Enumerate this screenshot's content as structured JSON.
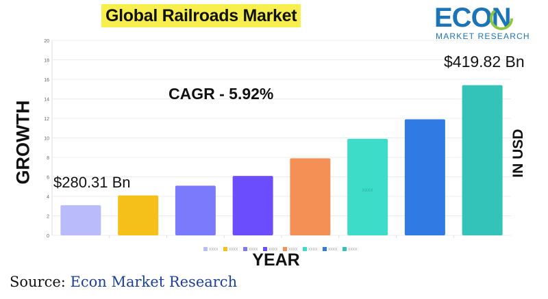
{
  "header": {
    "title": "Global Railroads Market"
  },
  "logo": {
    "word": "ECON",
    "sub": "MARKET RESEARCH",
    "colors": {
      "text": "#1b73b8",
      "ring": "#8dc63f"
    }
  },
  "annotations": {
    "cagr": "CAGR  - 5.92%",
    "first_value": "$280.31 Bn",
    "last_value": "$419.82 Bn"
  },
  "source": {
    "prefix": "Source: ",
    "brand": "Econ Market Research"
  },
  "chart_data": {
    "type": "bar",
    "categories": [
      "",
      "",
      "",
      "",
      "",
      "",
      "",
      ""
    ],
    "values": [
      3.1,
      4.1,
      5.1,
      6.1,
      7.9,
      9.9,
      11.9,
      15.4
    ],
    "colors": [
      "#babbfb",
      "#f5c01a",
      "#7b79fc",
      "#6c4dfd",
      "#f48f55",
      "#3ddcc8",
      "#2f7ae3",
      "#34c3b9"
    ],
    "legend_labels": [
      "XXXX",
      "XXXX",
      "XXXX",
      "XXXX",
      "XXXX",
      "XXXX",
      "XXXX",
      "XXXX"
    ],
    "bar_inner_label": "XXXX",
    "xlabel": "YEAR",
    "ylabel": "GROWTH",
    "ylabel_right": "IN USD",
    "ylim": [
      0,
      20
    ],
    "yticks": [
      0,
      2,
      4,
      6,
      8,
      10,
      12,
      14,
      16,
      18,
      20
    ],
    "grid": true,
    "legend_position": "bottom"
  }
}
